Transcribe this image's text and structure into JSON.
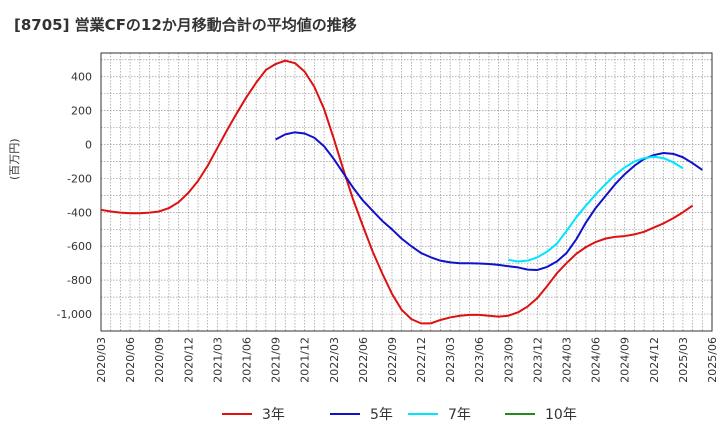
{
  "chart_data": {
    "type": "line",
    "title": "[8705]  営業CFの12か月移動合計の平均値の推移",
    "ylabel": "(百万円)",
    "xlabel": "",
    "ylim": [
      -1100,
      540
    ],
    "y_ticks": [
      400,
      200,
      0,
      -200,
      -400,
      -600,
      -800,
      -1000
    ],
    "y_tick_labels": [
      "400",
      "200",
      "0",
      "-200",
      "-400",
      "-600",
      "-800",
      "-1,000"
    ],
    "x_tick_labels": [
      "2020/03",
      "2020/06",
      "2020/09",
      "2020/12",
      "2021/03",
      "2021/06",
      "2021/09",
      "2021/12",
      "2022/03",
      "2022/06",
      "2022/09",
      "2022/12",
      "2023/03",
      "2023/06",
      "2023/09",
      "2023/12",
      "2024/03",
      "2024/06",
      "2024/09",
      "2024/12",
      "2025/03",
      "2025/06"
    ],
    "grid": true,
    "legend_position": "bottom",
    "series": [
      {
        "name": "3年",
        "color": "#dd1111",
        "start": "2020/03",
        "values": [
          -385,
          -395,
          -402,
          -405,
          -405,
          -402,
          -395,
          -375,
          -340,
          -285,
          -215,
          -125,
          -20,
          85,
          185,
          280,
          365,
          440,
          475,
          495,
          480,
          430,
          340,
          210,
          35,
          -150,
          -325,
          -480,
          -630,
          -760,
          -880,
          -975,
          -1030,
          -1055,
          -1055,
          -1035,
          -1020,
          -1010,
          -1005,
          -1005,
          -1010,
          -1015,
          -1010,
          -990,
          -955,
          -905,
          -835,
          -760,
          -700,
          -645,
          -605,
          -575,
          -555,
          -545,
          -540,
          -530,
          -515,
          -490,
          -465,
          -435,
          -400,
          -360
        ]
      },
      {
        "name": "5年",
        "color": "#1111cc",
        "start": "2021/09",
        "values": [
          30,
          60,
          72,
          65,
          40,
          -10,
          -85,
          -170,
          -255,
          -330,
          -390,
          -450,
          -500,
          -555,
          -600,
          -640,
          -665,
          -685,
          -695,
          -700,
          -700,
          -702,
          -705,
          -710,
          -718,
          -725,
          -738,
          -740,
          -722,
          -690,
          -640,
          -560,
          -460,
          -375,
          -305,
          -235,
          -175,
          -125,
          -85,
          -62,
          -50,
          -55,
          -75,
          -110,
          -150
        ]
      },
      {
        "name": "7年",
        "color": "#00e5ff",
        "start": "2023/09",
        "values": [
          -680,
          -690,
          -685,
          -665,
          -632,
          -585,
          -510,
          -430,
          -360,
          -295,
          -235,
          -180,
          -135,
          -100,
          -80,
          -72,
          -80,
          -105,
          -140
        ]
      },
      {
        "name": "10年",
        "color": "#228b22",
        "start": "2025/03",
        "values": []
      }
    ]
  }
}
